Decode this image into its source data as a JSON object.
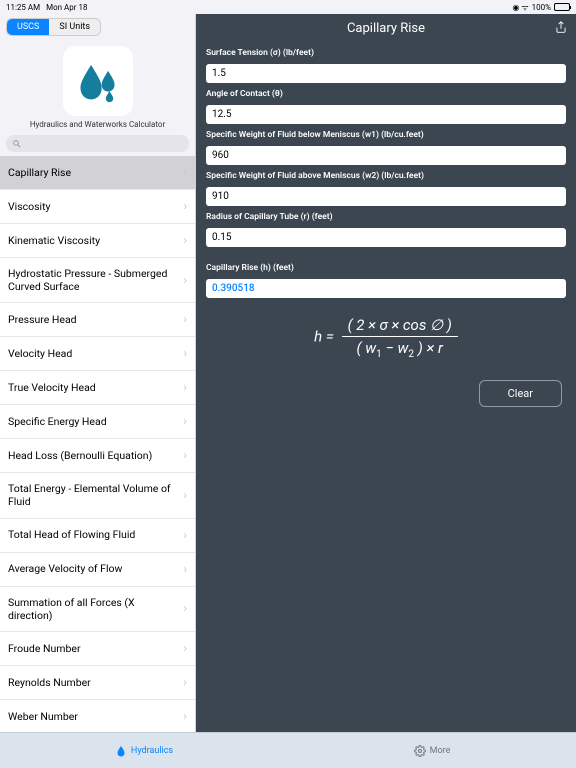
{
  "status": {
    "time": "11:25 AM",
    "date": "Mon Apr 18",
    "battery": "100%"
  },
  "segments": {
    "uscs": "USCS",
    "si": "SI Units"
  },
  "app_name": "Hydraulics and Waterworks Calculator",
  "header": {
    "title": "Capillary Rise"
  },
  "sidebar": {
    "items": [
      "Capillary Rise",
      "Viscosity",
      "Kinematic Viscosity",
      "Hydrostatic Pressure - Submerged Curved Surface",
      "Pressure Head",
      "Velocity Head",
      "True Velocity Head",
      "Specific Energy Head",
      "Head Loss (Bernoulli Equation)",
      "Total Energy - Elemental Volume of Fluid",
      "Total Head of Flowing Fluid",
      "Average Velocity of Flow",
      "Summation of all Forces (X direction)",
      "Froude Number",
      "Reynolds Number",
      "Weber Number"
    ],
    "selected": 0
  },
  "fields": [
    {
      "label": "Surface Tension (σ) (lb/feet)",
      "value": "1.5"
    },
    {
      "label": "Angle of Contact (θ)",
      "value": "12.5"
    },
    {
      "label": "Specific Weight of Fluid below Meniscus (w1) (lb/cu.feet)",
      "value": "960"
    },
    {
      "label": "Specific Weight of Fluid above Meniscus (w2) (lb/cu.feet)",
      "value": "910"
    },
    {
      "label": "Radius of Capillary Tube (r) (feet)",
      "value": "0.15"
    }
  ],
  "result": {
    "label": "Capillary Rise (h) (feet)",
    "value": "0.390518"
  },
  "buttons": {
    "clear": "Clear"
  },
  "tabs": {
    "hydraulics": "Hydraulics",
    "more": "More"
  },
  "colors": {
    "content_bg": "#3b4650",
    "accent": "#0a84ff",
    "drop": "#147e9c"
  }
}
